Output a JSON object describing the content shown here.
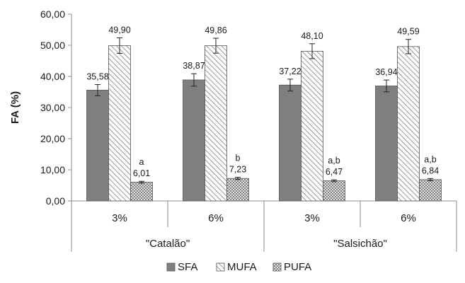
{
  "chart_data": {
    "type": "bar",
    "ylabel": "FA (%)",
    "ylim": [
      0,
      60
    ],
    "yticks": [
      0,
      10,
      20,
      30,
      40,
      50,
      60
    ],
    "ytick_labels": [
      "0,00",
      "10,00",
      "20,00",
      "30,00",
      "40,00",
      "50,00",
      "60,00"
    ],
    "grid": false,
    "categories": [
      "3%",
      "6%",
      "3%",
      "6%"
    ],
    "groups": [
      {
        "label": "\"Catalão\"",
        "categories": [
          "3%",
          "6%"
        ]
      },
      {
        "label": "\"Salsichão\"",
        "categories": [
          "3%",
          "6%"
        ]
      }
    ],
    "series": [
      {
        "name": "SFA",
        "values": [
          35.58,
          38.87,
          37.22,
          36.94
        ],
        "errors": [
          1.8,
          2.0,
          1.9,
          1.9
        ],
        "labels": [
          "35,58",
          "38,87",
          "37,22",
          "36,94"
        ],
        "letters": [
          "",
          "",
          "",
          ""
        ],
        "color": "#7f7f7f",
        "pattern": "solid"
      },
      {
        "name": "MUFA",
        "values": [
          49.9,
          49.86,
          48.1,
          49.59
        ],
        "errors": [
          2.5,
          2.4,
          2.4,
          2.3
        ],
        "labels": [
          "49,90",
          "49,86",
          "48,10",
          "49,59"
        ],
        "letters": [
          "",
          "",
          "",
          ""
        ],
        "color": "#ffffff",
        "pattern": "diagonal"
      },
      {
        "name": "PUFA",
        "values": [
          6.01,
          7.23,
          6.47,
          6.84
        ],
        "errors": [
          0.3,
          0.35,
          0.3,
          0.35
        ],
        "labels": [
          "6,01",
          "7,23",
          "6,47",
          "6,84"
        ],
        "letters": [
          "a",
          "b",
          "a,b",
          "a,b"
        ],
        "color": "#ffffff",
        "pattern": "crosshatch"
      }
    ],
    "legend": {
      "placement": "bottom",
      "items": [
        "SFA",
        "MUFA",
        "PUFA"
      ]
    }
  }
}
